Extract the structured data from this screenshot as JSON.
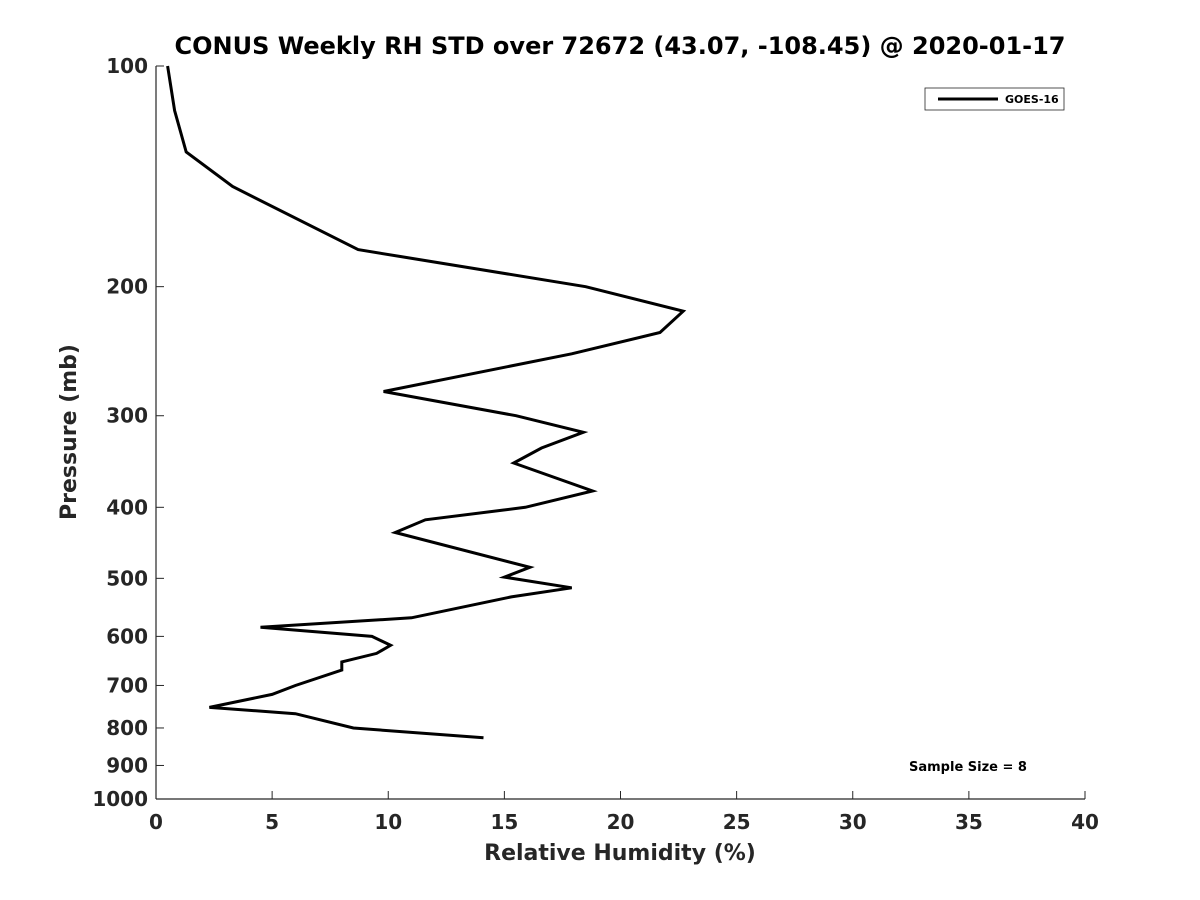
{
  "chart_data": {
    "type": "line",
    "title": "CONUS Weekly RH STD over 72672 (43.07, -108.45) @ 2020-01-17",
    "xlabel": "Relative Humidity (%)",
    "ylabel": "Pressure (mb)",
    "xlim": [
      0,
      40
    ],
    "ylim": [
      100,
      1000
    ],
    "y_scale": "log",
    "y_direction": "reversed",
    "grid": false,
    "legend_position": "top-right",
    "xticks": [
      "0",
      "5",
      "10",
      "15",
      "20",
      "25",
      "30",
      "35",
      "40"
    ],
    "yticks": [
      "100",
      "200",
      "300",
      "400",
      "500",
      "600",
      "700",
      "800",
      "900",
      "1000"
    ],
    "annotation": "Sample Size = 8",
    "colors": {
      "series": "#000000",
      "text": "#262626"
    },
    "series": [
      {
        "name": "GOES-16",
        "x": [
          0.5,
          0.8,
          1.3,
          3.3,
          8.7,
          18.5,
          22.7,
          21.7,
          17.9,
          9.8,
          15.5,
          18.4,
          16.6,
          15.4,
          18.8,
          15.9,
          11.6,
          10.3,
          16.1,
          15.0,
          17.9,
          15.3,
          11.0,
          4.5,
          9.3,
          10.1,
          9.5,
          8.0,
          8.0,
          6.0,
          5.0,
          2.3,
          6.0,
          8.5,
          14.1
        ],
        "y": [
          100,
          115,
          131,
          146,
          178,
          200,
          216,
          231,
          247,
          278,
          300,
          316,
          332,
          348,
          380,
          400,
          416,
          433,
          483,
          498,
          515,
          530,
          566,
          583,
          600,
          617,
          633,
          650,
          667,
          700,
          720,
          750,
          765,
          800,
          825
        ]
      }
    ]
  }
}
